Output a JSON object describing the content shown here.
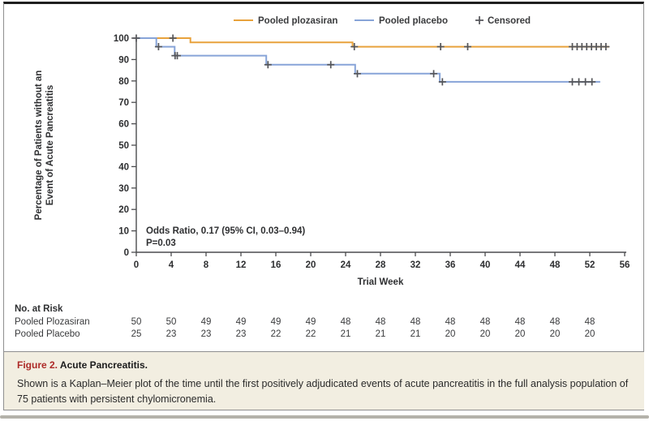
{
  "colors": {
    "plozasiran": "#E8A23C",
    "placebo": "#87A4D8",
    "censor": "#55565A",
    "axis": "#4B4C4E",
    "text": "#2E2F31",
    "caption_bg": "#F2EEE1",
    "figure_red": "#AD2A27",
    "border_gray": "#8F8F8F",
    "bottom_bar": "#B4B2AA"
  },
  "chart_data": {
    "type": "line",
    "subtype": "kaplan-meier-step",
    "xlabel": "Trial Week",
    "ylabel_line1": "Percentage of Patients without an",
    "ylabel_line2": "Event of Acute Pancreatitis",
    "xlim": [
      0,
      56
    ],
    "ylim": [
      0,
      100
    ],
    "x_ticks": [
      0,
      4,
      8,
      12,
      16,
      20,
      24,
      28,
      32,
      36,
      40,
      44,
      48,
      52,
      56
    ],
    "y_ticks": [
      0,
      10,
      20,
      30,
      40,
      50,
      60,
      70,
      80,
      90,
      100
    ],
    "grid": false,
    "legend_position": "top",
    "legend": [
      {
        "label": "Pooled plozasiran",
        "swatch": "line",
        "color": "#E8A23C"
      },
      {
        "label": "Pooled placebo",
        "swatch": "line",
        "color": "#87A4D8"
      },
      {
        "label": "Censored",
        "swatch": "plus",
        "color": "#55565A"
      }
    ],
    "annotation": {
      "line1": "Odds Ratio, 0.17 (95% CI, 0.03–0.94)",
      "line2": "P=0.03"
    },
    "series": [
      {
        "name": "Pooled plozasiran",
        "color": "#E8A23C",
        "steps": [
          [
            0,
            100
          ],
          [
            6.2,
            100
          ],
          [
            6.2,
            98
          ],
          [
            24.8,
            98
          ],
          [
            24.8,
            96
          ],
          [
            54.2,
            96
          ]
        ],
        "censored": [
          [
            0,
            100
          ],
          [
            4.2,
            100
          ],
          [
            25.0,
            96
          ],
          [
            34.9,
            96
          ],
          [
            38.0,
            96
          ],
          [
            50.0,
            96
          ],
          [
            50.55,
            96
          ],
          [
            51.1,
            96
          ],
          [
            51.65,
            96
          ],
          [
            52.2,
            96
          ],
          [
            52.75,
            96
          ],
          [
            53.3,
            96
          ],
          [
            53.85,
            96
          ]
        ]
      },
      {
        "name": "Pooled placebo",
        "color": "#87A4D8",
        "steps": [
          [
            0,
            100
          ],
          [
            2.3,
            100
          ],
          [
            2.3,
            96
          ],
          [
            4.4,
            96
          ],
          [
            4.4,
            91.8
          ],
          [
            14.9,
            91.8
          ],
          [
            14.9,
            87.6
          ],
          [
            25.1,
            87.6
          ],
          [
            25.1,
            83.4
          ],
          [
            34.8,
            83.4
          ],
          [
            34.8,
            79.6
          ],
          [
            53.2,
            79.6
          ]
        ],
        "censored": [
          [
            2.55,
            96
          ],
          [
            4.45,
            91.8
          ],
          [
            4.7,
            91.8
          ],
          [
            15.1,
            87.6
          ],
          [
            22.3,
            87.6
          ],
          [
            25.35,
            83.4
          ],
          [
            34.1,
            83.4
          ],
          [
            35.1,
            79.6
          ],
          [
            50.0,
            79.6
          ],
          [
            50.75,
            79.6
          ],
          [
            51.5,
            79.6
          ],
          [
            52.25,
            79.6
          ]
        ]
      }
    ],
    "at_risk": {
      "header": "No. at Risk",
      "weeks": [
        0,
        4,
        8,
        12,
        16,
        20,
        24,
        28,
        32,
        36,
        40,
        44,
        48,
        52
      ],
      "rows": [
        {
          "label": "Pooled Plozasiran",
          "values": [
            50,
            50,
            49,
            49,
            49,
            49,
            48,
            48,
            48,
            48,
            48,
            48,
            48,
            48
          ]
        },
        {
          "label": "Pooled Placebo",
          "values": [
            25,
            23,
            23,
            23,
            22,
            22,
            21,
            21,
            21,
            20,
            20,
            20,
            20,
            20
          ]
        }
      ]
    }
  },
  "caption": {
    "figure_label": "Figure 2.",
    "figure_title": "Acute Pancreatitis.",
    "body": "Shown is a Kaplan–Meier plot of the time until the first positively adjudicated events of acute pancreatitis in the full analysis population of 75 patients with persistent chylomicronemia."
  }
}
